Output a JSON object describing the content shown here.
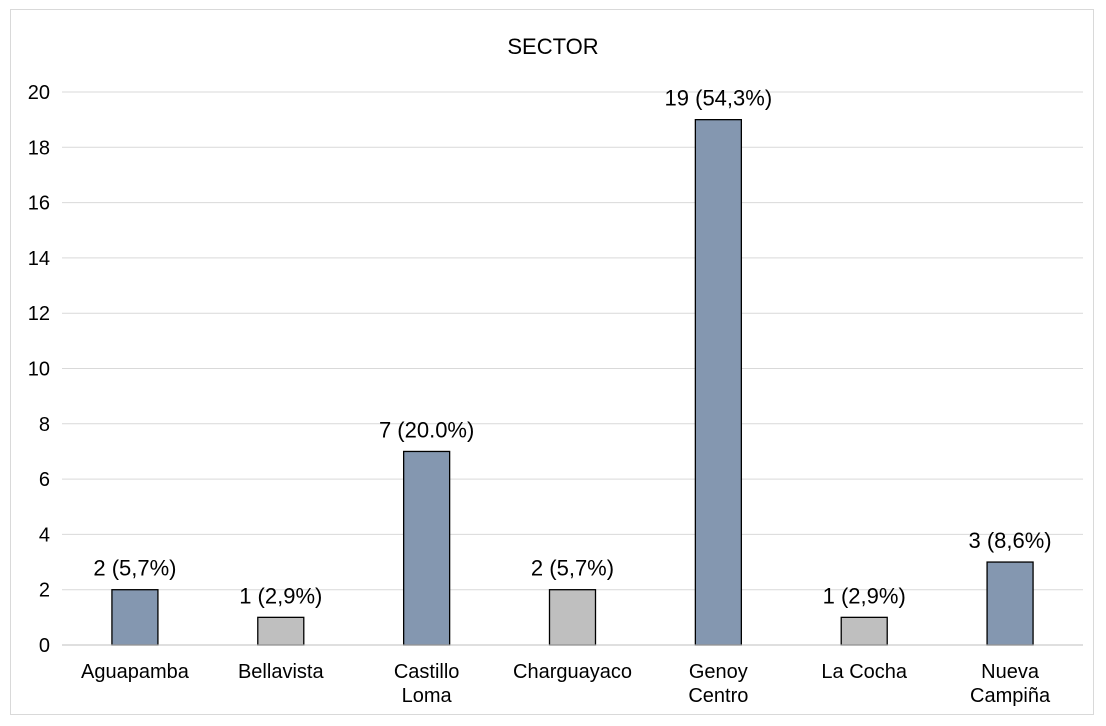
{
  "chart_data": {
    "type": "bar",
    "title": "SECTOR",
    "xlabel": "",
    "ylabel": "",
    "ylim": [
      0,
      20
    ],
    "yticks": [
      0,
      2,
      4,
      6,
      8,
      10,
      12,
      14,
      16,
      18,
      20
    ],
    "grid": true,
    "categories": [
      [
        "Aguapamba"
      ],
      [
        "Bellavista"
      ],
      [
        "Castillo",
        "Loma"
      ],
      [
        "Charguayaco"
      ],
      [
        "Genoy",
        "Centro"
      ],
      [
        "La Cocha"
      ],
      [
        "Nueva",
        "Campiña"
      ]
    ],
    "values": [
      2,
      1,
      7,
      2,
      19,
      1,
      3
    ],
    "data_labels": [
      "2 (5,7%)",
      "1 (2,9%)",
      "7 (20.0%)",
      "2 (5,7%)",
      "19 (54,3%)",
      "1 (2,9%)",
      "3 (8,6%)"
    ],
    "colors": [
      "#8497b0",
      "#bfbfbf",
      "#8497b0",
      "#bfbfbf",
      "#8497b0",
      "#bfbfbf",
      "#8497b0"
    ],
    "gridline_color": "#d9d9d9",
    "bar_edge_color": "#000000"
  }
}
